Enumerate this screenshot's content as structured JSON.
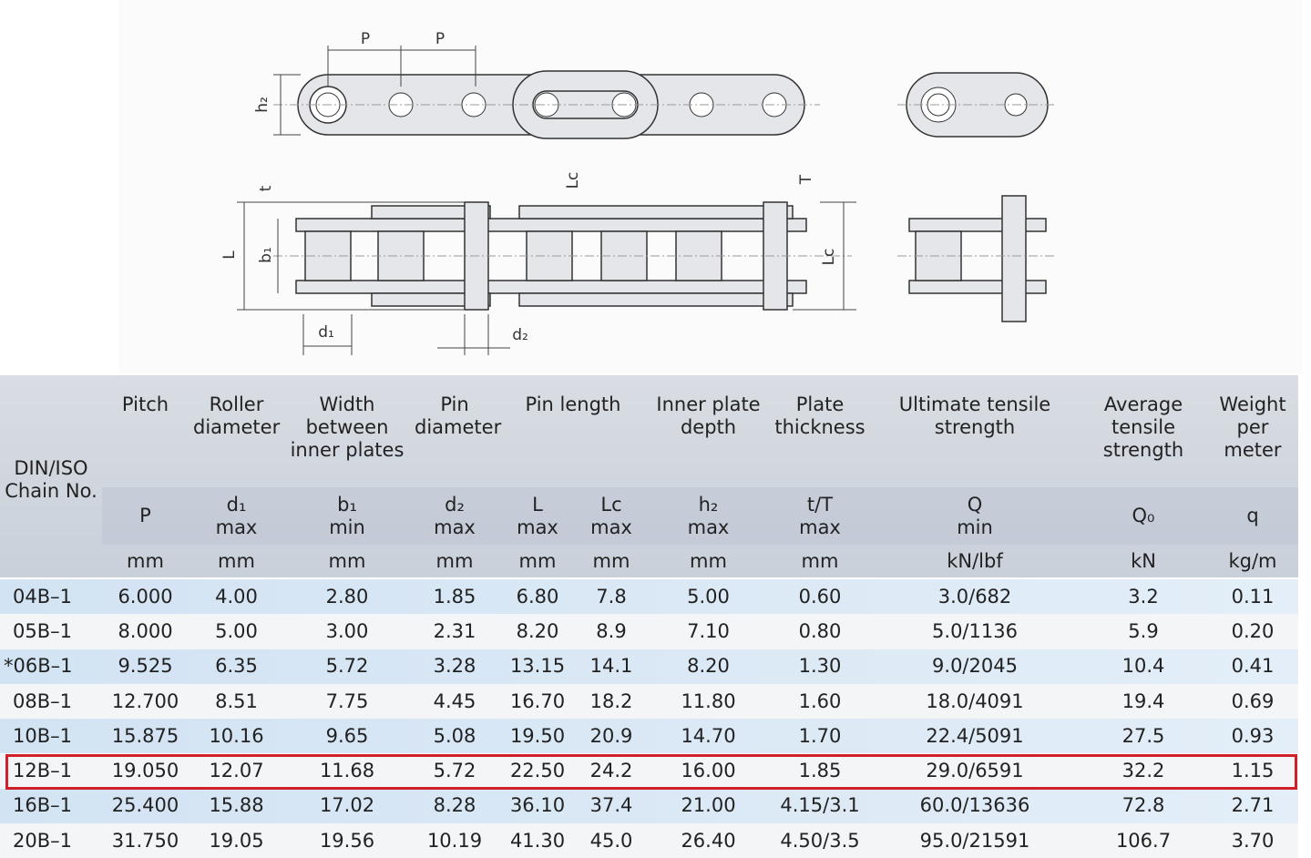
{
  "diagram": {
    "labels": [
      "P",
      "P",
      "h₂",
      "t",
      "L",
      "b₁",
      "d₁",
      "d₂",
      "Lc",
      "T",
      "Lc"
    ]
  },
  "table": {
    "group_headers": [
      "DIN/ISO Chain No.",
      "Pitch",
      "Roller diameter",
      "Width between inner plates",
      "Pin diameter",
      "Pin length",
      "Inner plate depth",
      "Plate thickness",
      "Ultimate tensile strength",
      "Average tensile strength",
      "Weight per meter"
    ],
    "symbols": [
      [
        "P"
      ],
      [
        "d₁",
        "max"
      ],
      [
        "b₁",
        "min"
      ],
      [
        "d₂",
        "max"
      ],
      [
        "L",
        "max"
      ],
      [
        "Lc",
        "max"
      ],
      [
        "h₂",
        "max"
      ],
      [
        "t/T",
        "max"
      ],
      [
        "Q",
        "min"
      ],
      [
        "Q₀"
      ],
      [
        "q"
      ]
    ],
    "units": [
      "mm",
      "mm",
      "mm",
      "mm",
      "mm",
      "mm",
      "mm",
      "mm",
      "kN/lbf",
      "kN",
      "kg/m"
    ],
    "rows": [
      [
        "04B–1",
        "6.000",
        "4.00",
        "2.80",
        "1.85",
        "6.80",
        "7.8",
        "5.00",
        "0.60",
        "3.0/682",
        "3.2",
        "0.11"
      ],
      [
        "05B–1",
        "8.000",
        "5.00",
        "3.00",
        "2.31",
        "8.20",
        "8.9",
        "7.10",
        "0.80",
        "5.0/1136",
        "5.9",
        "0.20"
      ],
      [
        "*06B–1",
        "9.525",
        "6.35",
        "5.72",
        "3.28",
        "13.15",
        "14.1",
        "8.20",
        "1.30",
        "9.0/2045",
        "10.4",
        "0.41"
      ],
      [
        "08B–1",
        "12.700",
        "8.51",
        "7.75",
        "4.45",
        "16.70",
        "18.2",
        "11.80",
        "1.60",
        "18.0/4091",
        "19.4",
        "0.69"
      ],
      [
        "10B–1",
        "15.875",
        "10.16",
        "9.65",
        "5.08",
        "19.50",
        "20.9",
        "14.70",
        "1.70",
        "22.4/5091",
        "27.5",
        "0.93"
      ],
      [
        "12B–1",
        "19.050",
        "12.07",
        "11.68",
        "5.72",
        "22.50",
        "24.2",
        "16.00",
        "1.85",
        "29.0/6591",
        "32.2",
        "1.15"
      ],
      [
        "16B–1",
        "25.400",
        "15.88",
        "17.02",
        "8.28",
        "36.10",
        "37.4",
        "21.00",
        "4.15/3.1",
        "60.0/13636",
        "72.8",
        "2.71"
      ],
      [
        "20B–1",
        "31.750",
        "19.05",
        "19.56",
        "10.19",
        "41.30",
        "45.0",
        "26.40",
        "4.50/3.5",
        "95.0/21591",
        "106.7",
        "3.70"
      ]
    ],
    "highlight_row": 5
  }
}
